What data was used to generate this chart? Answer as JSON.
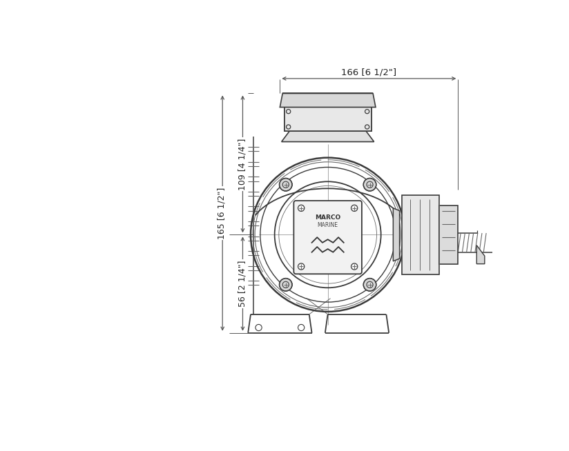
{
  "bg_color": "#ffffff",
  "line_color": "#3a3a3a",
  "dim_line_color": "#555555",
  "light_line_color": "#999999",
  "med_line_color": "#666666",
  "dim_top_label": "166 [6 1/2\"]",
  "dim_left1_label": "165 [6 1/2\"]",
  "dim_left2_label": "109 [4 1/4\"]",
  "dim_left3_label": "56 [2 1/4\"]",
  "fig_width": 8.24,
  "fig_height": 6.54,
  "dpi": 100
}
